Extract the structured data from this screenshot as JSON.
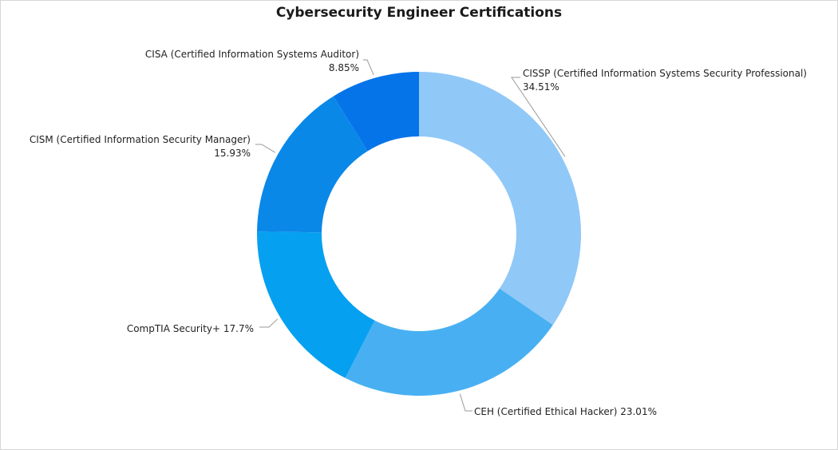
{
  "chart_data": {
    "type": "pie",
    "title": "Cybersecurity Engineer Certifications",
    "donut": true,
    "categories": [
      "CISSP (Certified Information Systems Security Professional)",
      "CEH (Certified Ethical Hacker)",
      "CompTIA Security+",
      "CISM (Certified Information Security Manager)",
      "CISA (Certified Information Systems Auditor)"
    ],
    "values": [
      34.51,
      23.01,
      17.7,
      15.93,
      8.85
    ],
    "value_labels": [
      "34.51%",
      "23.01%",
      "17.7%",
      "15.93%",
      "8.85%"
    ],
    "colors": [
      "#90c8f8",
      "#48b0f2",
      "#06a0f0",
      "#0a88e8",
      "#0574e8"
    ],
    "legend": "none",
    "label_placement": "outside with leader lines"
  }
}
